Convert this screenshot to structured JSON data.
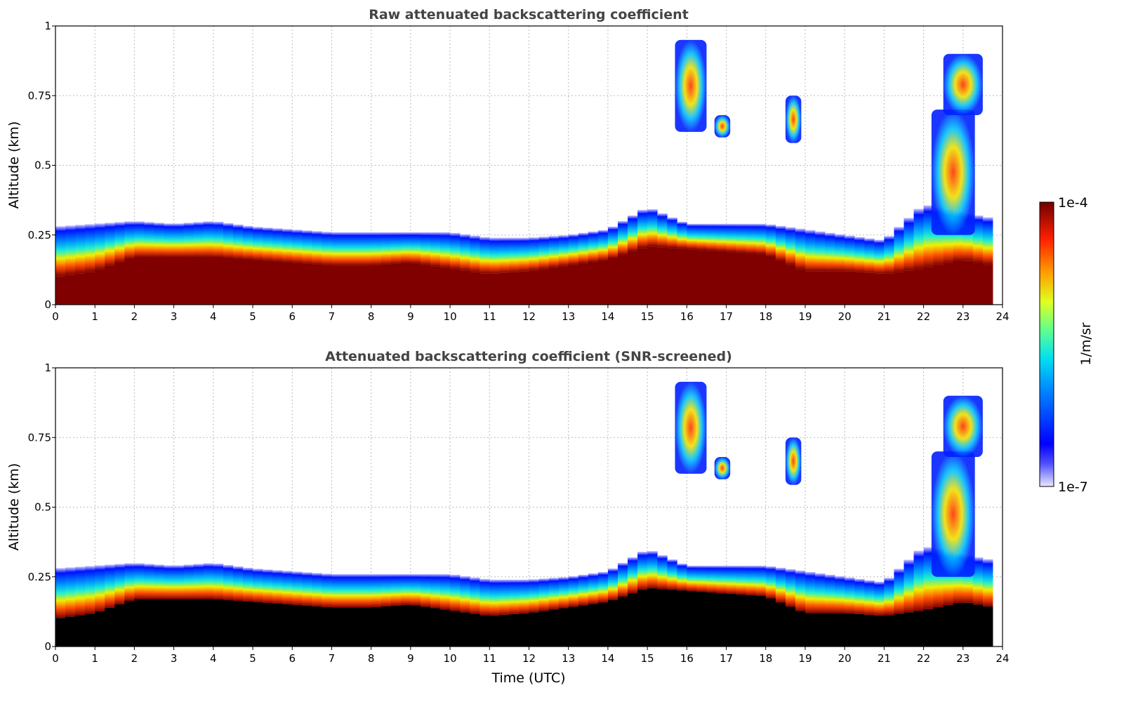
{
  "chart_data": {
    "type": "heatmap",
    "panels": [
      {
        "title": "Raw attenuated backscattering coefficient",
        "screened": false
      },
      {
        "title": "Attenuated backscattering coefficient (SNR-screened)",
        "screened": true
      }
    ],
    "xlabel": "Time (UTC)",
    "ylabel": "Altitude (km)",
    "xlim": [
      0,
      24
    ],
    "ylim": [
      0,
      1
    ],
    "xticks": [
      "0",
      "1",
      "2",
      "3",
      "4",
      "5",
      "6",
      "7",
      "8",
      "9",
      "10",
      "11",
      "12",
      "13",
      "14",
      "15",
      "16",
      "17",
      "18",
      "19",
      "20",
      "21",
      "22",
      "23",
      "24"
    ],
    "yticks": [
      "0",
      "0.25",
      "0.5",
      "0.75",
      "1"
    ],
    "grid": true,
    "colorbar": {
      "label": "1/m/sr",
      "min_label": "1e-7",
      "max_label": "1e-4",
      "colormap": "jet",
      "position": "right"
    },
    "data_end_hour": 23.75,
    "boundary_layer_top_km": {
      "hours": [
        0,
        1,
        2,
        3,
        4,
        5,
        6,
        7,
        8,
        9,
        10,
        11,
        12,
        13,
        14,
        15,
        16,
        17,
        18,
        19,
        20,
        21,
        22,
        23,
        23.75
      ],
      "values": [
        0.25,
        0.26,
        0.27,
        0.26,
        0.27,
        0.25,
        0.24,
        0.23,
        0.23,
        0.23,
        0.23,
        0.21,
        0.21,
        0.22,
        0.24,
        0.32,
        0.26,
        0.26,
        0.26,
        0.24,
        0.22,
        0.2,
        0.33,
        0.3,
        0.28
      ]
    },
    "saturated_layer_top_km": {
      "hours": [
        0,
        1,
        2,
        3,
        4,
        5,
        6,
        7,
        8,
        9,
        10,
        11,
        12,
        13,
        14,
        15,
        16,
        17,
        18,
        19,
        20,
        21,
        22,
        23,
        23.75
      ],
      "values": [
        0.1,
        0.12,
        0.17,
        0.17,
        0.17,
        0.16,
        0.15,
        0.14,
        0.14,
        0.15,
        0.13,
        0.11,
        0.12,
        0.14,
        0.16,
        0.21,
        0.2,
        0.19,
        0.18,
        0.12,
        0.12,
        0.11,
        0.13,
        0.16,
        0.14
      ]
    },
    "cloud_patches": [
      {
        "t0": 15.7,
        "t1": 16.5,
        "z0": 0.62,
        "z1": 0.95,
        "level": 0.4
      },
      {
        "t0": 16.7,
        "t1": 17.1,
        "z0": 0.6,
        "z1": 0.68,
        "level": 0.3
      },
      {
        "t0": 18.5,
        "t1": 18.9,
        "z0": 0.58,
        "z1": 0.75,
        "level": 0.55
      },
      {
        "t0": 22.2,
        "t1": 23.3,
        "z0": 0.25,
        "z1": 0.7,
        "level": 0.75
      },
      {
        "t0": 22.5,
        "t1": 23.5,
        "z0": 0.68,
        "z1": 0.9,
        "level": 0.85
      }
    ]
  }
}
